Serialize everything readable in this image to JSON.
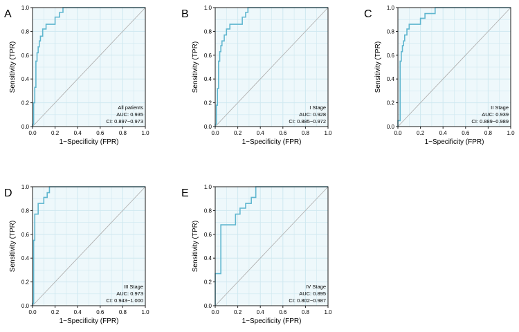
{
  "figure": {
    "fill_color": "#eef8fb",
    "grid_color": "#cfe8f0",
    "curve_color": "#5fb6cf",
    "diagonal_color": "#b0b0b0",
    "frame_color": "#1a1a1a"
  },
  "chart_data": [
    {
      "type": "line",
      "panel_label": "A",
      "title": "",
      "xlabel": "1−Specificity (FPR)",
      "ylabel": "Sensitivity (TPR)",
      "xlim": [
        0,
        1
      ],
      "ylim": [
        0,
        1
      ],
      "xticks": [
        "0.0",
        "0.2",
        "0.4",
        "0.6",
        "0.8",
        "1.0"
      ],
      "yticks": [
        "0.0",
        "0.2",
        "0.4",
        "0.6",
        "0.8",
        "1.0"
      ],
      "grid": true,
      "legend_position": "bottom-right",
      "annotation": [
        "All patients",
        "AUC: 0.935",
        "CI: 0.897−0.973"
      ],
      "series": [
        {
          "x": [
            0,
            0,
            0.01,
            0.01,
            0.02,
            0.02,
            0.03,
            0.03,
            0.04,
            0.04,
            0.05,
            0.05,
            0.06,
            0.06,
            0.07,
            0.07,
            0.09,
            0.09,
            0.12,
            0.12,
            0.15,
            0.15,
            0.16,
            0.16,
            0.2,
            0.2,
            0.24,
            0.24,
            0.27,
            0.27,
            1.0
          ],
          "y": [
            0,
            0.02,
            0.02,
            0.2,
            0.2,
            0.33,
            0.33,
            0.55,
            0.55,
            0.62,
            0.62,
            0.67,
            0.67,
            0.72,
            0.72,
            0.76,
            0.76,
            0.82,
            0.82,
            0.86,
            0.86,
            0.86,
            0.86,
            0.86,
            0.86,
            0.92,
            0.92,
            0.96,
            0.96,
            1.0,
            1.0
          ]
        }
      ]
    },
    {
      "type": "line",
      "panel_label": "B",
      "title": "",
      "xlabel": "1−Specificity (FPR)",
      "ylabel": "Sensitivity (TPR)",
      "xlim": [
        0,
        1
      ],
      "ylim": [
        0,
        1
      ],
      "xticks": [
        "0.0",
        "0.2",
        "0.4",
        "0.6",
        "0.8",
        "1.0"
      ],
      "yticks": [
        "0.0",
        "0.2",
        "0.4",
        "0.6",
        "0.8",
        "1.0"
      ],
      "grid": true,
      "legend_position": "bottom-right",
      "annotation": [
        "I Stage",
        "AUC: 0.928",
        "CI: 0.885−0.972"
      ],
      "series": [
        {
          "x": [
            0,
            0,
            0.01,
            0.01,
            0.02,
            0.02,
            0.03,
            0.03,
            0.04,
            0.04,
            0.05,
            0.05,
            0.06,
            0.06,
            0.08,
            0.08,
            0.1,
            0.1,
            0.13,
            0.13,
            0.16,
            0.16,
            0.2,
            0.2,
            0.24,
            0.24,
            0.27,
            0.27,
            0.29,
            0.29,
            1.0
          ],
          "y": [
            0,
            0.02,
            0.02,
            0.18,
            0.18,
            0.32,
            0.32,
            0.55,
            0.55,
            0.63,
            0.63,
            0.68,
            0.68,
            0.72,
            0.72,
            0.77,
            0.77,
            0.82,
            0.82,
            0.86,
            0.86,
            0.86,
            0.86,
            0.86,
            0.86,
            0.92,
            0.92,
            0.96,
            0.96,
            1.0,
            1.0
          ]
        }
      ]
    },
    {
      "type": "line",
      "panel_label": "C",
      "title": "",
      "xlabel": "1−Specificity (FPR)",
      "ylabel": "Sensitivity (TPR)",
      "xlim": [
        0,
        1
      ],
      "ylim": [
        0,
        1
      ],
      "xticks": [
        "0.0",
        "0.2",
        "0.4",
        "0.6",
        "0.8",
        "1.0"
      ],
      "yticks": [
        "0.0",
        "0.2",
        "0.4",
        "0.6",
        "0.8",
        "1.0"
      ],
      "grid": true,
      "legend_position": "bottom-right",
      "annotation": [
        "II Stage",
        "AUC: 0.939",
        "CI: 0.889−0.989"
      ],
      "series": [
        {
          "x": [
            0,
            0,
            0.02,
            0.02,
            0.03,
            0.03,
            0.04,
            0.04,
            0.05,
            0.05,
            0.06,
            0.06,
            0.08,
            0.08,
            0.1,
            0.1,
            0.13,
            0.13,
            0.16,
            0.16,
            0.2,
            0.2,
            0.24,
            0.24,
            0.27,
            0.27,
            0.33,
            0.33,
            1.0
          ],
          "y": [
            0,
            0.05,
            0.05,
            0.55,
            0.55,
            0.63,
            0.63,
            0.68,
            0.68,
            0.72,
            0.72,
            0.77,
            0.77,
            0.82,
            0.82,
            0.86,
            0.86,
            0.86,
            0.86,
            0.86,
            0.86,
            0.91,
            0.91,
            0.95,
            0.95,
            0.95,
            0.95,
            1.0,
            1.0
          ]
        }
      ]
    },
    {
      "type": "line",
      "panel_label": "D",
      "title": "",
      "xlabel": "1−Specificity (FPR)",
      "ylabel": "Sensitivity (TPR)",
      "xlim": [
        0,
        1
      ],
      "ylim": [
        0,
        1
      ],
      "xticks": [
        "0.0",
        "0.2",
        "0.4",
        "0.6",
        "0.8",
        "1.0"
      ],
      "yticks": [
        "0.0",
        "0.2",
        "0.4",
        "0.6",
        "0.8",
        "1.0"
      ],
      "grid": true,
      "legend_position": "bottom-right",
      "annotation": [
        "III Stage",
        "AUC: 0.973",
        "CI: 0.943−1.000"
      ],
      "series": [
        {
          "x": [
            0,
            0,
            0.01,
            0.01,
            0.02,
            0.02,
            0.04,
            0.04,
            0.05,
            0.05,
            0.1,
            0.1,
            0.13,
            0.13,
            0.15,
            0.15,
            1.0
          ],
          "y": [
            0,
            0.02,
            0.02,
            0.55,
            0.55,
            0.77,
            0.77,
            0.77,
            0.77,
            0.86,
            0.86,
            0.91,
            0.91,
            0.95,
            0.95,
            1.0,
            1.0
          ]
        }
      ]
    },
    {
      "type": "line",
      "panel_label": "E",
      "title": "",
      "xlabel": "1−Specificity (FPR)",
      "ylabel": "Sensitivity (TPR)",
      "xlim": [
        0,
        1
      ],
      "ylim": [
        0,
        1
      ],
      "xticks": [
        "0.0",
        "0.2",
        "0.4",
        "0.6",
        "0.8",
        "1.0"
      ],
      "yticks": [
        "0.0",
        "0.2",
        "0.4",
        "0.6",
        "0.8",
        "1.0"
      ],
      "grid": true,
      "legend_position": "bottom-right",
      "annotation": [
        "IV Stage",
        "AUC: 0.895",
        "CI: 0.802−0.987"
      ],
      "series": [
        {
          "x": [
            0,
            0,
            0.05,
            0.05,
            0.18,
            0.18,
            0.22,
            0.22,
            0.27,
            0.27,
            0.32,
            0.32,
            0.36,
            0.36,
            1.0
          ],
          "y": [
            0,
            0.27,
            0.27,
            0.68,
            0.68,
            0.77,
            0.77,
            0.82,
            0.82,
            0.86,
            0.86,
            0.91,
            0.91,
            1.0,
            1.0
          ]
        }
      ]
    }
  ]
}
